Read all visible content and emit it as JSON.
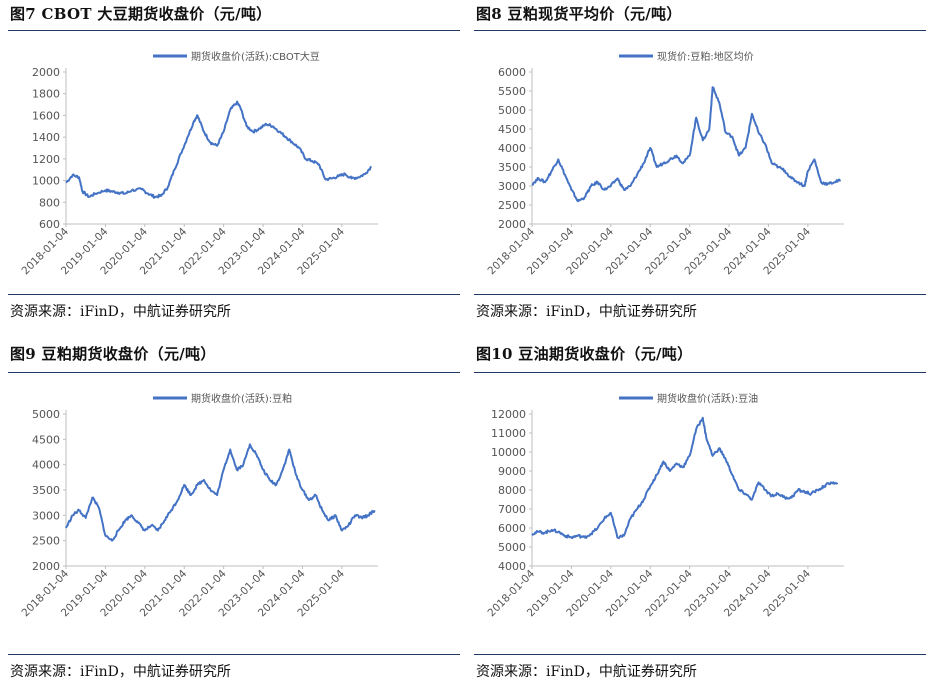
{
  "panels": [
    {
      "id": "cbot",
      "title": "图7  CBOT 大豆期货收盘价（元/吨）",
      "source": "资源来源：iFinD，中航证券研究所",
      "chart_data": {
        "type": "line",
        "legend": "期货收盘价(活跃):CBOT大豆",
        "legend_position": "top",
        "x_ticks": [
          "2018-01-04",
          "2019-01-04",
          "2020-01-04",
          "2021-01-04",
          "2022-01-04",
          "2023-01-04",
          "2024-01-04",
          "2025-01-04"
        ],
        "y_ticks": [
          600,
          800,
          1000,
          1200,
          1400,
          1600,
          1800,
          2000
        ],
        "ylim": [
          600,
          2000
        ],
        "color": "#4472c4",
        "series": [
          {
            "x": [
              "2018-01",
              "2018-03",
              "2018-05",
              "2018-06",
              "2018-08",
              "2018-10",
              "2019-01",
              "2019-03",
              "2019-05",
              "2019-07",
              "2019-09",
              "2019-12",
              "2020-02",
              "2020-04",
              "2020-06",
              "2020-08",
              "2020-10",
              "2020-12",
              "2021-02",
              "2021-04",
              "2021-05",
              "2021-07",
              "2021-09",
              "2021-11",
              "2022-01",
              "2022-03",
              "2022-05",
              "2022-06",
              "2022-08",
              "2022-10",
              "2022-12",
              "2023-02",
              "2023-04",
              "2023-06",
              "2023-08",
              "2023-10",
              "2023-12",
              "2024-02",
              "2024-04",
              "2024-06",
              "2024-08",
              "2024-10",
              "2024-12",
              "2025-02",
              "2025-04",
              "2025-06",
              "2025-08",
              "2025-10"
            ],
            "values": [
              980,
              1050,
              1030,
              900,
              850,
              880,
              910,
              900,
              890,
              880,
              910,
              920,
              880,
              850,
              860,
              940,
              1100,
              1250,
              1400,
              1550,
              1600,
              1450,
              1350,
              1320,
              1450,
              1650,
              1720,
              1680,
              1500,
              1450,
              1480,
              1520,
              1500,
              1450,
              1400,
              1350,
              1300,
              1200,
              1180,
              1150,
              1010,
              1020,
              1040,
              1060,
              1020,
              1030,
              1060,
              1130
            ]
          }
        ]
      }
    },
    {
      "id": "meal-spot",
      "title": "图8  豆粕现货平均价（元/吨）",
      "source": "资源来源：iFinD，中航证券研究所",
      "chart_data": {
        "type": "line",
        "legend": "现货价:豆粕:地区均价",
        "legend_position": "top",
        "x_ticks": [
          "2018-01-04",
          "2019-01-04",
          "2020-01-04",
          "2021-01-04",
          "2022-01-04",
          "2023-01-04",
          "2024-01-04",
          "2025-01-04"
        ],
        "y_ticks": [
          2000,
          2500,
          3000,
          3500,
          4000,
          4500,
          5000,
          5500,
          6000
        ],
        "ylim": [
          2000,
          6000
        ],
        "color": "#4472c4",
        "series": [
          {
            "x": [
              "2018-01",
              "2018-03",
              "2018-05",
              "2018-07",
              "2018-09",
              "2018-11",
              "2019-01",
              "2019-03",
              "2019-05",
              "2019-07",
              "2019-09",
              "2019-11",
              "2020-01",
              "2020-03",
              "2020-05",
              "2020-07",
              "2020-09",
              "2020-11",
              "2021-01",
              "2021-03",
              "2021-05",
              "2021-07",
              "2021-09",
              "2021-11",
              "2022-01",
              "2022-03",
              "2022-05",
              "2022-07",
              "2022-08",
              "2022-10",
              "2022-12",
              "2023-02",
              "2023-04",
              "2023-06",
              "2023-08",
              "2023-10",
              "2023-12",
              "2024-02",
              "2024-04",
              "2024-06",
              "2024-08",
              "2024-10",
              "2024-12",
              "2025-01",
              "2025-03",
              "2025-05",
              "2025-07",
              "2025-09",
              "2025-11"
            ],
            "values": [
              3050,
              3200,
              3100,
              3400,
              3700,
              3300,
              2900,
              2600,
              2700,
              3000,
              3100,
              2900,
              3000,
              3200,
              2900,
              3000,
              3300,
              3600,
              4000,
              3500,
              3600,
              3700,
              3800,
              3600,
              3800,
              4800,
              4200,
              4500,
              5600,
              5200,
              4400,
              4300,
              3800,
              4000,
              4900,
              4400,
              4100,
              3600,
              3500,
              3400,
              3200,
              3100,
              3000,
              3400,
              3700,
              3100,
              3050,
              3100,
              3150
            ]
          }
        ]
      }
    },
    {
      "id": "meal-fut",
      "title": "图9  豆粕期货收盘价（元/吨）",
      "source": "资源来源：iFinD，中航证券研究所",
      "chart_data": {
        "type": "line",
        "legend": "期货收盘价(活跃):豆粕",
        "legend_position": "top",
        "x_ticks": [
          "2018-01-04",
          "2019-01-04",
          "2020-01-04",
          "2021-01-04",
          "2022-01-04",
          "2023-01-04",
          "2024-01-04",
          "2025-01-04"
        ],
        "y_ticks": [
          2000,
          2500,
          3000,
          3500,
          4000,
          4500,
          5000
        ],
        "ylim": [
          2000,
          5000
        ],
        "color": "#4472c4",
        "series": [
          {
            "x": [
              "2018-01",
              "2018-03",
              "2018-05",
              "2018-07",
              "2018-09",
              "2018-11",
              "2019-01",
              "2019-03",
              "2019-05",
              "2019-07",
              "2019-09",
              "2019-11",
              "2020-01",
              "2020-03",
              "2020-05",
              "2020-07",
              "2020-09",
              "2020-11",
              "2021-01",
              "2021-03",
              "2021-05",
              "2021-07",
              "2021-09",
              "2021-11",
              "2022-01",
              "2022-03",
              "2022-05",
              "2022-07",
              "2022-09",
              "2022-11",
              "2023-01",
              "2023-03",
              "2023-05",
              "2023-07",
              "2023-09",
              "2023-11",
              "2024-01",
              "2024-03",
              "2024-05",
              "2024-07",
              "2024-09",
              "2024-11",
              "2025-01",
              "2025-03",
              "2025-05",
              "2025-07",
              "2025-09",
              "2025-11"
            ],
            "values": [
              2750,
              3000,
              3100,
              2950,
              3350,
              3150,
              2600,
              2500,
              2700,
              2900,
              3000,
              2850,
              2700,
              2800,
              2700,
              2900,
              3100,
              3300,
              3600,
              3400,
              3600,
              3700,
              3500,
              3400,
              3900,
              4300,
              3900,
              4000,
              4400,
              4200,
              3900,
              3700,
              3600,
              3900,
              4300,
              3800,
              3500,
              3300,
              3400,
              3100,
              2900,
              3000,
              2700,
              2800,
              3000,
              2950,
              3000,
              3100
            ]
          }
        ]
      }
    },
    {
      "id": "oil-fut",
      "title": "图10  豆油期货收盘价（元/吨）",
      "source": "资源来源：iFinD，中航证券研究所",
      "chart_data": {
        "type": "line",
        "legend": "期货收盘价(活跃):豆油",
        "legend_position": "top",
        "x_ticks": [
          "2018-01-04",
          "2019-01-04",
          "2020-01-04",
          "2021-01-04",
          "2022-01-04",
          "2023-01-04",
          "2024-01-04",
          "2025-01-04"
        ],
        "y_ticks": [
          4000,
          5000,
          6000,
          7000,
          8000,
          9000,
          10000,
          11000,
          12000
        ],
        "ylim": [
          4000,
          12000
        ],
        "color": "#4472c4",
        "series": [
          {
            "x": [
              "2018-01",
              "2018-03",
              "2018-05",
              "2018-07",
              "2018-09",
              "2018-11",
              "2019-01",
              "2019-03",
              "2019-05",
              "2019-07",
              "2019-09",
              "2019-11",
              "2020-01",
              "2020-03",
              "2020-05",
              "2020-07",
              "2020-09",
              "2020-11",
              "2021-01",
              "2021-03",
              "2021-05",
              "2021-07",
              "2021-09",
              "2021-11",
              "2022-01",
              "2022-03",
              "2022-05",
              "2022-06",
              "2022-08",
              "2022-10",
              "2022-12",
              "2023-02",
              "2023-04",
              "2023-06",
              "2023-08",
              "2023-10",
              "2023-12",
              "2024-02",
              "2024-04",
              "2024-06",
              "2024-08",
              "2024-10",
              "2024-12",
              "2025-02",
              "2025-04",
              "2025-06",
              "2025-08",
              "2025-10"
            ],
            "values": [
              5700,
              5800,
              5750,
              5900,
              5800,
              5600,
              5500,
              5600,
              5500,
              5700,
              6000,
              6500,
              6800,
              5500,
              5600,
              6500,
              7000,
              7500,
              8200,
              8800,
              9500,
              9000,
              9400,
              9200,
              9800,
              11200,
              11800,
              10800,
              9800,
              10200,
              9600,
              8800,
              8000,
              7800,
              7500,
              8400,
              8000,
              7700,
              7800,
              7600,
              7600,
              8000,
              7900,
              7800,
              8000,
              8200,
              8400,
              8300
            ]
          }
        ]
      }
    }
  ]
}
